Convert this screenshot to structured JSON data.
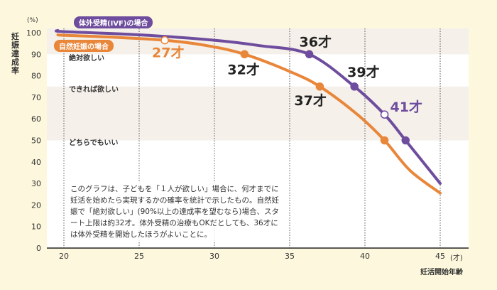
{
  "chart_data": {
    "type": "line",
    "ylabel": "妊娠達成率",
    "yunit": "(%)",
    "xlabel": "妊活開始年齢",
    "xunit": "(才)",
    "xlim": [
      20,
      45
    ],
    "ylim": [
      0,
      100
    ],
    "xticks": [
      "20",
      "25",
      "30",
      "35",
      "40",
      "45"
    ],
    "yticks": [
      "0",
      "10",
      "20",
      "30",
      "40",
      "50",
      "60",
      "70",
      "80",
      "90",
      "100"
    ],
    "bands": [
      {
        "label": "絶対欲しい",
        "from": 90,
        "to": 100,
        "shaded": true
      },
      {
        "label": "できれば欲しい",
        "from": 75,
        "to": 90,
        "shaded": false
      },
      {
        "label": "どちらでもいい",
        "from": 50,
        "to": 75,
        "shaded": true
      }
    ],
    "series": [
      {
        "name": "体外受精(IVF)の場合",
        "color": "#6e4c9e",
        "x": [
          19.6,
          20,
          25,
          30,
          33,
          36.3,
          39.3,
          41.3,
          42.7,
          45
        ],
        "y": [
          101,
          100.5,
          99,
          96.5,
          94,
          90,
          75,
          62,
          50,
          30
        ],
        "markers": [
          {
            "x": 36.3,
            "y": 90,
            "label": "36才",
            "hollow": false,
            "label_color": "#222222"
          },
          {
            "x": 39.3,
            "y": 75,
            "label": "39才",
            "hollow": false,
            "label_color": "#222222"
          },
          {
            "x": 41.3,
            "y": 62,
            "label": "41才",
            "hollow": true,
            "label_color": "#6e4c9e"
          },
          {
            "x": 42.7,
            "y": 50,
            "label": "",
            "hollow": false
          }
        ]
      },
      {
        "name": "自然妊娠の場合",
        "color": "#e8863a",
        "x": [
          19.6,
          20,
          23,
          26.7,
          29.5,
          32,
          35,
          37,
          39.5,
          41.3,
          43,
          45
        ],
        "y": [
          99,
          98.8,
          98,
          96.5,
          94,
          90,
          82,
          75,
          62,
          50,
          36,
          25.5
        ],
        "markers": [
          {
            "x": 26.7,
            "y": 96.5,
            "label": "27才",
            "hollow": true,
            "label_color": "#e8863a"
          },
          {
            "x": 32,
            "y": 90,
            "label": "32才",
            "hollow": false,
            "label_color": "#222222"
          },
          {
            "x": 37,
            "y": 75,
            "label": "37才",
            "hollow": false,
            "label_color": "#222222"
          },
          {
            "x": 41.3,
            "y": 50,
            "label": "",
            "hollow": false
          }
        ]
      }
    ],
    "grid": "vertical dotted",
    "annotation": "このグラフは、子どもを「１人が欲しい」場合に、何才までに妊活を始めたら実現するかの確率を統計で示したもの。自然妊娠で「絶対欲しい」(90%以上の達成率を望むなら)場合、スタート上限は約32才。体外受精の治療もOKだとしても、36才には体外受精を開始したほうがよいことに。"
  }
}
